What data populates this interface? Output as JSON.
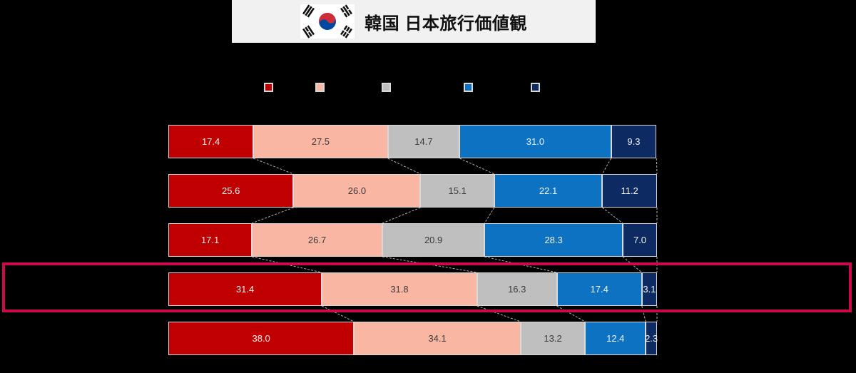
{
  "title": {
    "text": "韓国 日本旅行価値観",
    "flag": "south-korea-flag"
  },
  "colors": {
    "background": "#000000",
    "title_card_bg": "#f1f1f1",
    "title_text": "#111111",
    "highlight_border": "#cc084e",
    "segment_border": "#d9d9d9",
    "legend_swatch_border": "#d9d9d9",
    "connector_line": "#b0b0b0",
    "flag_red": "#cd2e3a",
    "flag_blue": "#0047a0"
  },
  "legend": {
    "position": "top",
    "swatch_colors": [
      "#c00000",
      "#f8b6a3",
      "#bfbfbf",
      "#0e72c3",
      "#0d2a63"
    ]
  },
  "chart_data": {
    "type": "bar",
    "orientation": "horizontal",
    "stacked": true,
    "stacked_100_percent": true,
    "title": "韓国 日本旅行価値観",
    "categories": [
      "",
      "",
      "",
      "",
      ""
    ],
    "series": [
      {
        "name": "",
        "color": "#c00000",
        "label_color": "#f2f2f2",
        "values": [
          17.4,
          25.6,
          17.1,
          31.4,
          38.0
        ]
      },
      {
        "name": "",
        "color": "#f8b6a3",
        "label_color": "#3b3b3b",
        "values": [
          27.5,
          26.0,
          26.7,
          31.8,
          34.1
        ]
      },
      {
        "name": "",
        "color": "#bfbfbf",
        "label_color": "#3b3b3b",
        "values": [
          14.7,
          15.1,
          20.9,
          16.3,
          13.2
        ]
      },
      {
        "name": "",
        "color": "#0e72c3",
        "label_color": "#f2f2f2",
        "values": [
          31.0,
          22.1,
          28.3,
          17.4,
          12.4
        ]
      },
      {
        "name": "",
        "color": "#0d2a63",
        "label_color": "#f2f2f2",
        "values": [
          9.3,
          11.2,
          7.0,
          3.1,
          2.3
        ]
      }
    ],
    "highlighted_category_index": 3,
    "value_labels": true,
    "axes_visible": false,
    "legend_position": "top"
  }
}
